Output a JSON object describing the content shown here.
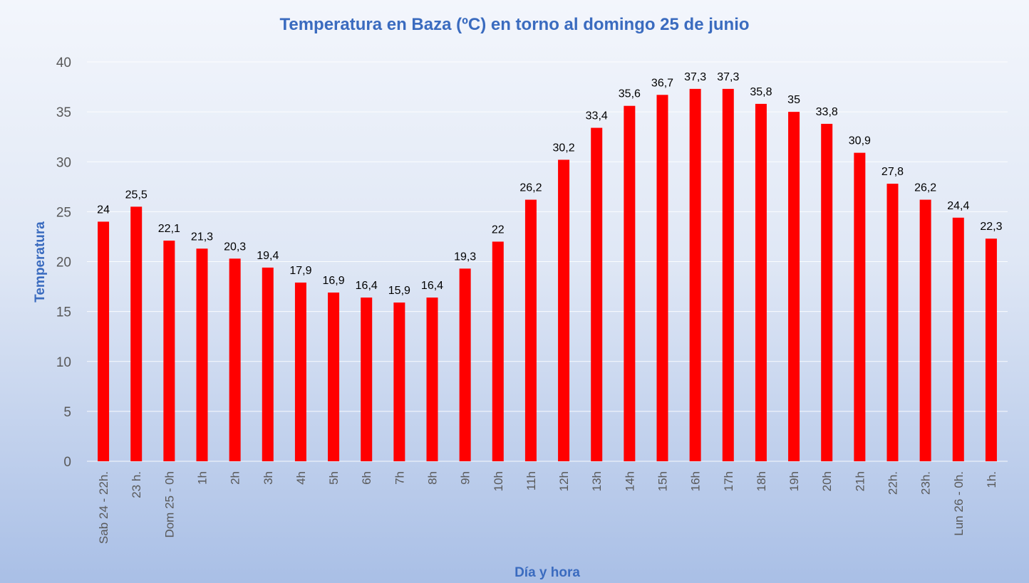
{
  "chart_data": {
    "type": "bar",
    "title": "Temperatura en Baza (ºC) en torno al domingo 25 de junio",
    "xlabel": "Día y hora",
    "ylabel": "Temperatura",
    "ylim": [
      0,
      40
    ],
    "yticks": [
      "0",
      "5",
      "10",
      "15",
      "20",
      "25",
      "30",
      "35",
      "40"
    ],
    "grid": true,
    "bar_color": "#ff0000",
    "categories": [
      "Sab 24 - 22h.",
      "23 h.",
      "Dom 25 - 0h",
      "1h",
      "2h",
      "3h",
      "4h",
      "5h",
      "6h",
      "7h",
      "8h",
      "9h",
      "10h",
      "11h",
      "12h",
      "13h",
      "14h",
      "15h",
      "16h",
      "17h",
      "18h",
      "19h",
      "20h",
      "21h",
      "22h.",
      "23h.",
      "Lun 26 - 0h.",
      "1h."
    ],
    "values": [
      24,
      25.5,
      22.1,
      21.3,
      20.3,
      19.4,
      17.9,
      16.9,
      16.4,
      15.9,
      16.4,
      19.3,
      22,
      26.2,
      30.2,
      33.4,
      35.6,
      36.7,
      37.3,
      37.3,
      35.8,
      35,
      33.8,
      30.9,
      27.8,
      26.2,
      24.4,
      22.3
    ],
    "data_labels": [
      "24",
      "25,5",
      "22,1",
      "21,3",
      "20,3",
      "19,4",
      "17,9",
      "16,9",
      "16,4",
      "15,9",
      "16,4",
      "19,3",
      "22",
      "26,2",
      "30,2",
      "33,4",
      "35,6",
      "36,7",
      "37,3",
      "37,3",
      "35,8",
      "35",
      "33,8",
      "30,9",
      "27,8",
      "26,2",
      "24,4",
      "22,3"
    ]
  }
}
